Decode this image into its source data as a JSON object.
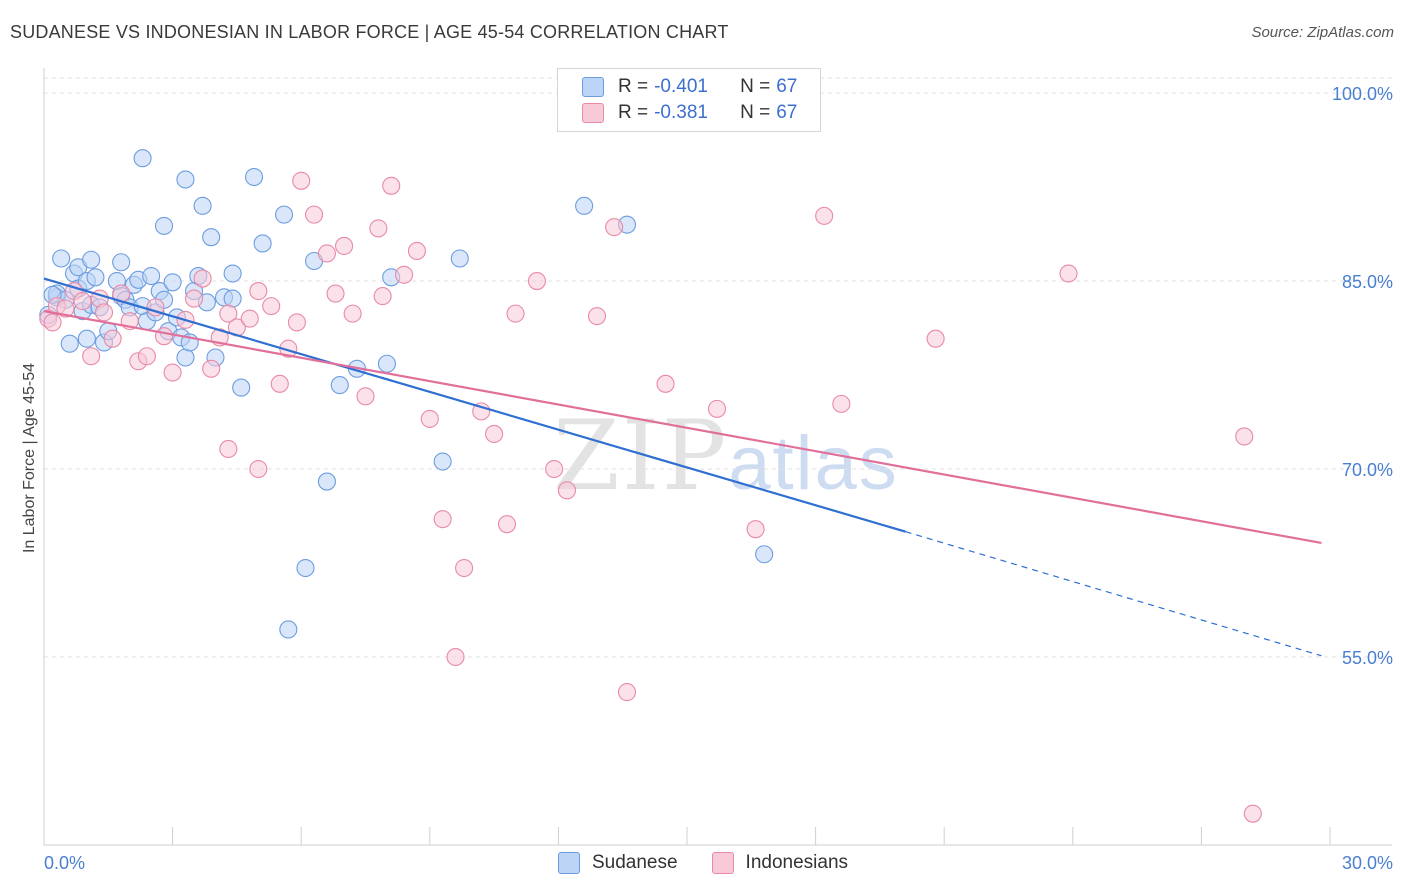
{
  "title": "SUDANESE VS INDONESIAN IN LABOR FORCE | AGE 45-54 CORRELATION CHART",
  "source": "Source: ZipAtlas.com",
  "watermark": {
    "zip": "ZIP",
    "atlas": "atlas"
  },
  "legend": {
    "rows": [
      {
        "r_label": "R = ",
        "r_value": "-0.401",
        "n_label": "N = ",
        "n_value": "67",
        "color": "#a9c6f0"
      },
      {
        "r_label": "R = ",
        "r_value": "-0.381",
        "n_label": "N = ",
        "n_value": "67",
        "color": "#f5b8c9"
      }
    ]
  },
  "bottom_legend": [
    {
      "label": "Sudanese",
      "color": "#a9c6f0"
    },
    {
      "label": "Indonesians",
      "color": "#f5b8c9"
    }
  ],
  "chart_data": {
    "type": "scatter",
    "ylabel": "In Labor Force | Age 45-54",
    "xlim": [
      0,
      30
    ],
    "ylim": [
      40,
      102
    ],
    "x_tick_labels": [
      "0.0%",
      "30.0%"
    ],
    "y_ticks": [
      {
        "value": 100,
        "label": "100.0%"
      },
      {
        "value": 85,
        "label": "85.0%"
      },
      {
        "value": 70,
        "label": "70.0%"
      },
      {
        "value": 55,
        "label": "55.0%"
      }
    ],
    "series": [
      {
        "name": "Sudanese",
        "color": "#6d9de0",
        "fill": "#bcd4f5",
        "trend": {
          "x0": 0,
          "y0": 85.2,
          "x1": 20.1,
          "y1": 65.0,
          "dash_to_x": 29.8,
          "dash_to_y": 55.1,
          "color": "#2e6fd1"
        },
        "points": [
          [
            0.1,
            82.3
          ],
          [
            0.3,
            83.7
          ],
          [
            0.3,
            84.0
          ],
          [
            0.4,
            86.8
          ],
          [
            0.5,
            83.5
          ],
          [
            0.6,
            80.0
          ],
          [
            0.7,
            85.6
          ],
          [
            0.8,
            84.4
          ],
          [
            0.8,
            86.1
          ],
          [
            0.9,
            82.6
          ],
          [
            1.0,
            85.0
          ],
          [
            1.0,
            80.4
          ],
          [
            1.1,
            83.1
          ],
          [
            1.1,
            86.7
          ],
          [
            1.2,
            85.3
          ],
          [
            1.3,
            82.9
          ],
          [
            1.4,
            80.1
          ],
          [
            1.5,
            81.0
          ],
          [
            1.7,
            85.0
          ],
          [
            1.8,
            86.5
          ],
          [
            1.8,
            83.8
          ],
          [
            1.9,
            83.5
          ],
          [
            2.0,
            82.9
          ],
          [
            2.1,
            84.7
          ],
          [
            2.2,
            85.1
          ],
          [
            2.3,
            83.0
          ],
          [
            2.4,
            81.8
          ],
          [
            2.5,
            85.4
          ],
          [
            2.6,
            82.5
          ],
          [
            2.7,
            84.2
          ],
          [
            2.8,
            83.5
          ],
          [
            2.9,
            81.0
          ],
          [
            3.0,
            84.9
          ],
          [
            3.1,
            82.1
          ],
          [
            3.2,
            80.5
          ],
          [
            3.3,
            78.9
          ],
          [
            3.4,
            80.1
          ],
          [
            3.5,
            84.2
          ],
          [
            3.6,
            85.4
          ],
          [
            3.8,
            83.3
          ],
          [
            4.0,
            78.9
          ],
          [
            4.2,
            83.7
          ],
          [
            4.4,
            85.6
          ],
          [
            4.6,
            76.5
          ],
          [
            2.3,
            94.8
          ],
          [
            2.8,
            89.4
          ],
          [
            3.3,
            93.1
          ],
          [
            3.9,
            88.5
          ],
          [
            3.7,
            91.0
          ],
          [
            4.4,
            83.6
          ],
          [
            4.9,
            93.3
          ],
          [
            5.1,
            88.0
          ],
          [
            5.6,
            90.3
          ],
          [
            6.3,
            86.6
          ],
          [
            6.1,
            62.1
          ],
          [
            5.7,
            57.2
          ],
          [
            6.9,
            76.7
          ],
          [
            7.3,
            78.0
          ],
          [
            6.6,
            69.0
          ],
          [
            8.1,
            85.3
          ],
          [
            8.0,
            78.4
          ],
          [
            9.3,
            70.6
          ],
          [
            9.7,
            86.8
          ],
          [
            12.6,
            91.0
          ],
          [
            13.6,
            89.5
          ],
          [
            16.8,
            63.2
          ],
          [
            0.2,
            83.9
          ]
        ]
      },
      {
        "name": "Indonesians",
        "color": "#e88aa8",
        "fill": "#f8c9d7",
        "trend": {
          "x0": 0,
          "y0": 82.6,
          "x1": 29.8,
          "y1": 64.1,
          "color": "#e0709a"
        },
        "points": [
          [
            0.1,
            82.0
          ],
          [
            0.2,
            81.7
          ],
          [
            0.3,
            83.0
          ],
          [
            0.5,
            82.8
          ],
          [
            0.7,
            84.2
          ],
          [
            0.9,
            83.4
          ],
          [
            1.1,
            79.0
          ],
          [
            1.3,
            83.6
          ],
          [
            1.4,
            82.5
          ],
          [
            1.6,
            80.4
          ],
          [
            1.8,
            84.0
          ],
          [
            2.0,
            81.8
          ],
          [
            2.2,
            78.6
          ],
          [
            2.4,
            79.0
          ],
          [
            2.6,
            82.9
          ],
          [
            2.8,
            80.6
          ],
          [
            3.0,
            77.7
          ],
          [
            3.3,
            81.9
          ],
          [
            3.5,
            83.6
          ],
          [
            3.7,
            85.2
          ],
          [
            3.9,
            78.0
          ],
          [
            4.1,
            80.5
          ],
          [
            4.3,
            82.4
          ],
          [
            4.5,
            81.3
          ],
          [
            4.8,
            82.0
          ],
          [
            5.0,
            84.2
          ],
          [
            5.3,
            83.0
          ],
          [
            5.5,
            76.8
          ],
          [
            5.7,
            79.6
          ],
          [
            5.9,
            81.7
          ],
          [
            6.0,
            93.0
          ],
          [
            6.3,
            90.3
          ],
          [
            6.6,
            87.2
          ],
          [
            6.8,
            84.0
          ],
          [
            7.0,
            87.8
          ],
          [
            7.2,
            82.4
          ],
          [
            7.5,
            75.8
          ],
          [
            7.8,
            89.2
          ],
          [
            7.9,
            83.8
          ],
          [
            8.1,
            92.6
          ],
          [
            8.4,
            85.5
          ],
          [
            8.7,
            87.4
          ],
          [
            9.0,
            74.0
          ],
          [
            9.3,
            66.0
          ],
          [
            9.6,
            55.0
          ],
          [
            9.8,
            62.1
          ],
          [
            10.2,
            74.6
          ],
          [
            10.5,
            72.8
          ],
          [
            10.8,
            65.6
          ],
          [
            11.0,
            82.4
          ],
          [
            11.5,
            85.0
          ],
          [
            11.9,
            70.0
          ],
          [
            12.2,
            68.3
          ],
          [
            12.9,
            82.2
          ],
          [
            13.3,
            89.3
          ],
          [
            13.6,
            52.2
          ],
          [
            14.5,
            76.8
          ],
          [
            15.7,
            74.8
          ],
          [
            16.6,
            65.2
          ],
          [
            18.2,
            90.2
          ],
          [
            18.6,
            75.2
          ],
          [
            20.8,
            80.4
          ],
          [
            23.9,
            85.6
          ],
          [
            28.0,
            72.6
          ],
          [
            28.2,
            42.5
          ],
          [
            4.3,
            71.6
          ],
          [
            5.0,
            70.0
          ]
        ]
      }
    ]
  }
}
